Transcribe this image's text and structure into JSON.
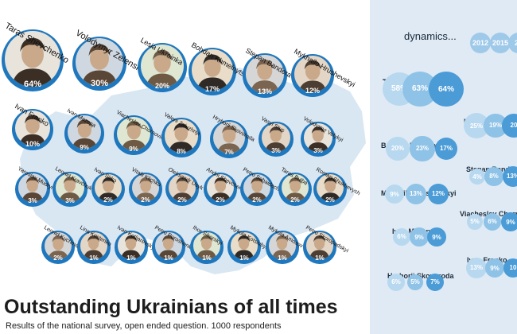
{
  "title": "Outstanding Ukrainians of all times",
  "subtitle": "Results of the national survey, open ended question. 1000 respondents",
  "dynamics": {
    "title": "dynamics...",
    "years": [
      "2012",
      "2015",
      "20"
    ],
    "rows": [
      {
        "name": "Taras Shevchenko",
        "values": [
          "58%",
          "63%",
          "64%"
        ]
      },
      {
        "name": "Lesia Ukrainka",
        "values": [
          "25%",
          "19%",
          "20"
        ]
      },
      {
        "name": "Bohdan Khmelnytskyi",
        "values": [
          "20%",
          "23%",
          "17%"
        ]
      },
      {
        "name": "Stepan Bandera",
        "values": [
          "4%",
          "8%",
          "13%"
        ]
      },
      {
        "name": "Mykhailo Hrushevskyi",
        "values": [
          "9%",
          "13%",
          "12%"
        ]
      },
      {
        "name": "Viacheslav Chornovil",
        "values": [
          "5%",
          "6%",
          "9%"
        ]
      },
      {
        "name": "Ivan Mazepa",
        "values": [
          "6%",
          "9%",
          "9%"
        ]
      },
      {
        "name": "Ivan Franko",
        "values": [
          "13%",
          "9%",
          "10"
        ]
      },
      {
        "name": "Hryhorii Skovoroda",
        "values": [
          "6%",
          "5%",
          "7%"
        ]
      }
    ]
  },
  "chart_data": {
    "type": "scatter",
    "title": "Outstanding Ukrainians of all times",
    "subtitle": "Results of the national survey, open ended question. 1000 respondents",
    "unit": "%",
    "people": [
      {
        "name": "Taras Shevchenko",
        "value": 64,
        "label": "64%"
      },
      {
        "name": "Volodymyr Zelenskyi",
        "value": 30,
        "label": "30%"
      },
      {
        "name": "Lesia Ukrainka",
        "value": 20,
        "label": "20%"
      },
      {
        "name": "Bohdan Khmelnytskyi",
        "value": 17,
        "label": "17%"
      },
      {
        "name": "Stepan Bandera",
        "value": 13,
        "label": "13%"
      },
      {
        "name": "Mykhailo Hrushevskyi",
        "value": 12,
        "label": "12%"
      },
      {
        "name": "Ivan Franko",
        "value": 10,
        "label": "10%"
      },
      {
        "name": "Ivan Mazepa",
        "value": 9,
        "label": "9%"
      },
      {
        "name": "Viacheslav Chornovil",
        "value": 9,
        "label": "9%"
      },
      {
        "name": "Valerii Zaluzhnyi",
        "value": 8,
        "label": "8%"
      },
      {
        "name": "Hryhorii Skovoroda",
        "value": 7,
        "label": "7%"
      },
      {
        "name": "Vasyl Stus",
        "value": 3,
        "label": "3%"
      },
      {
        "name": "Volodymyr Velykyi",
        "value": 3,
        "label": "3%"
      },
      {
        "name": "Yaroslav Mudryi",
        "value": 3,
        "label": "3%"
      },
      {
        "name": "Leonid Kravchuk",
        "value": 3,
        "label": "3%"
      },
      {
        "name": "Ivan Sirko",
        "value": 2,
        "label": "2%"
      },
      {
        "name": "Vitalii Klichko",
        "value": 2,
        "label": "2%"
      },
      {
        "name": "Oleksandr Usyk",
        "value": 2,
        "label": "2%"
      },
      {
        "name": "Andrii Shevchenko",
        "value": 2,
        "label": "2%"
      },
      {
        "name": "Petro Sahaidachnyi",
        "value": 2,
        "label": "2%"
      },
      {
        "name": "Taras Bulba",
        "value": 2,
        "label": "2%"
      },
      {
        "name": "Roman Shukhevych",
        "value": 2,
        "label": "2%"
      },
      {
        "name": "Leonid Kuchma",
        "value": 2,
        "label": "2%"
      },
      {
        "name": "Lina Kostenko",
        "value": 1,
        "label": "1%"
      },
      {
        "name": "Ivan Kotliarevskyi",
        "value": 1,
        "label": "1%"
      },
      {
        "name": "Petro Poroshenko",
        "value": 1,
        "label": "1%"
      },
      {
        "name": "Ihor Sikorskyi",
        "value": 1,
        "label": "1%"
      },
      {
        "name": "Mykola Kotsiubynskyi",
        "value": 1,
        "label": "1%"
      },
      {
        "name": "Mykola Amosov",
        "value": 1,
        "label": "1%"
      },
      {
        "name": "Petro Skoropadskyi",
        "value": 1,
        "label": "1%"
      }
    ]
  },
  "colors": {
    "bubble": "#1f77bd",
    "map": "#d9e7f3",
    "panel": "#dfeaf4",
    "dyn_light": "#b8d8ef",
    "dyn_mid": "#8ec2e6",
    "dyn_dark": "#4a9bd6"
  }
}
